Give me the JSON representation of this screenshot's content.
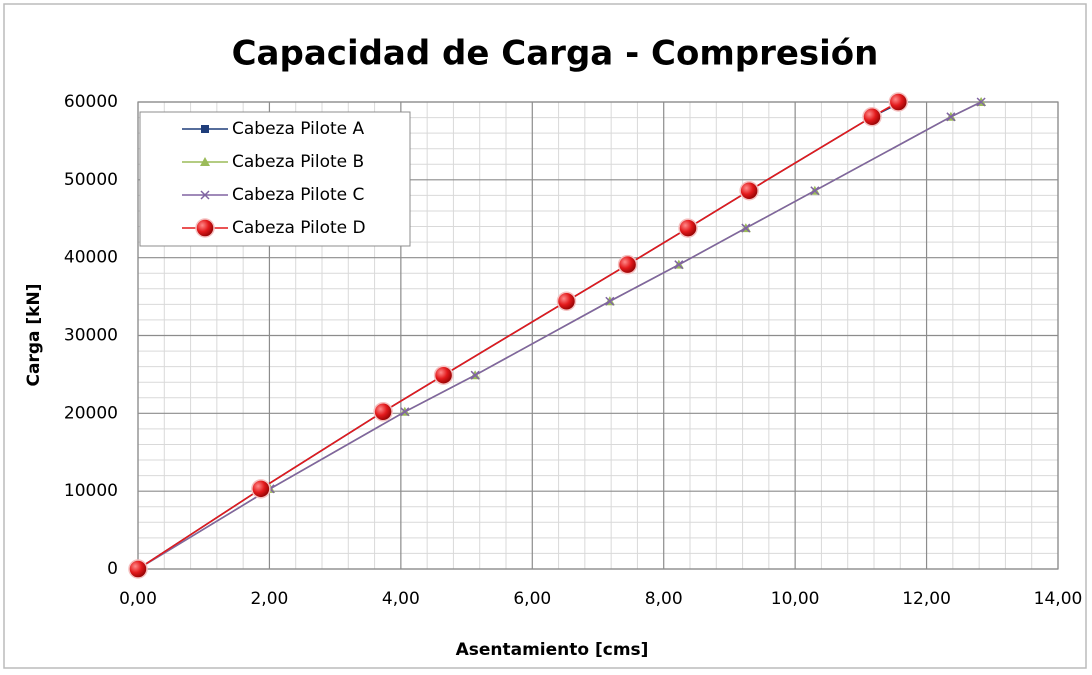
{
  "chart_data": {
    "type": "line",
    "title": "Capacidad de Carga - Compresión",
    "xlabel": "Asentamiento [cms]",
    "ylabel": "Carga [kN]",
    "xlim": [
      0,
      14
    ],
    "ylim": [
      0,
      60000
    ],
    "xticks": [
      {
        "value": 0,
        "label": "0,00"
      },
      {
        "value": 2,
        "label": "2,00"
      },
      {
        "value": 4,
        "label": "4,00"
      },
      {
        "value": 6,
        "label": "6,00"
      },
      {
        "value": 8,
        "label": "8,00"
      },
      {
        "value": 10,
        "label": "10,00"
      },
      {
        "value": 12,
        "label": "12,00"
      },
      {
        "value": 14,
        "label": "14,00"
      }
    ],
    "yticks": [
      0,
      10000,
      20000,
      30000,
      40000,
      50000,
      60000
    ],
    "grid": true,
    "minor_grid": true,
    "legend": "upper left",
    "series": [
      {
        "name": "Cabeza Pilote A",
        "color": "#1f3d7a",
        "marker": "square",
        "x": [
          0,
          1.87,
          3.73,
          4.65,
          6.52,
          7.45,
          8.37,
          9.3,
          11.17,
          11.62
        ],
        "values": [
          0,
          10300,
          20200,
          24900,
          34400,
          39100,
          43800,
          48600,
          58100,
          60000
        ]
      },
      {
        "name": "Cabeza Pilote B",
        "color": "#9bbb59",
        "marker": "triangle",
        "x": [
          0,
          2.01,
          4.06,
          5.13,
          7.18,
          8.23,
          9.25,
          10.3,
          12.37,
          12.83
        ],
        "values": [
          0,
          10300,
          20200,
          24900,
          34400,
          39100,
          43800,
          48600,
          58100,
          60000
        ]
      },
      {
        "name": "Cabeza Pilote C",
        "color": "#8064a2",
        "marker": "x",
        "x": [
          0,
          2.01,
          4.06,
          5.13,
          7.18,
          8.23,
          9.25,
          10.3,
          12.37,
          12.83
        ],
        "values": [
          0,
          10300,
          20200,
          24900,
          34400,
          39100,
          43800,
          48600,
          58100,
          60000
        ]
      },
      {
        "name": "Cabeza Pilote D",
        "color": "#e31a1c",
        "marker": "circle",
        "x": [
          0,
          1.87,
          3.73,
          4.65,
          6.52,
          7.45,
          8.37,
          9.3,
          11.17,
          11.57
        ],
        "values": [
          0,
          10300,
          20200,
          24900,
          34400,
          39100,
          43800,
          48600,
          58100,
          60000
        ]
      }
    ]
  }
}
